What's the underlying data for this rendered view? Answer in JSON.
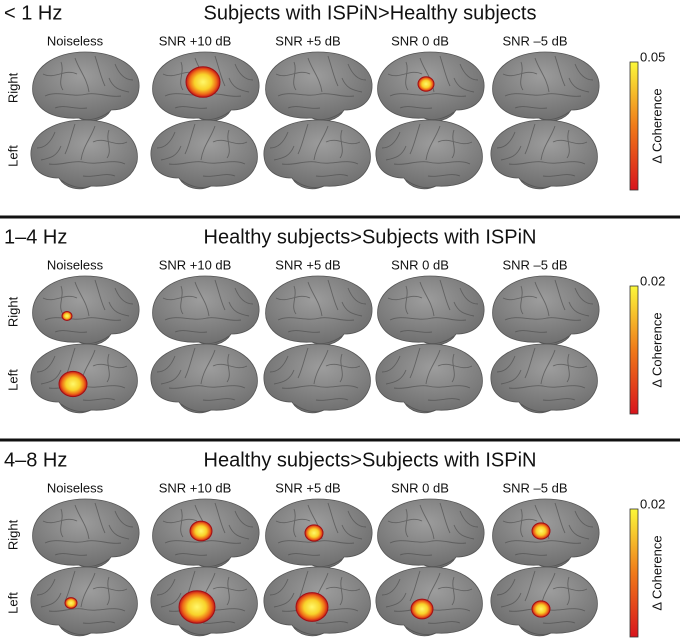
{
  "panels": [
    {
      "band": "< 1 Hz",
      "title": "Subjects with ISPiN>Healthy subjects",
      "columns": [
        "Noiseless",
        "SNR +10 dB",
        "SNR +5 dB",
        "SNR 0 dB",
        "SNR –5 dB"
      ],
      "rows": [
        "Right",
        "Left"
      ],
      "colorbar": {
        "max_label": "0.05",
        "label": "Δ Coherence"
      }
    },
    {
      "band": "1–4 Hz",
      "title": "Healthy subjects>Subjects with ISPiN",
      "columns": [
        "Noiseless",
        "SNR +10 dB",
        "SNR +5 dB",
        "SNR 0 dB",
        "SNR –5 dB"
      ],
      "rows": [
        "Right",
        "Left"
      ],
      "colorbar": {
        "max_label": "0.02",
        "label": "Δ Coherence"
      }
    },
    {
      "band": "4–8 Hz",
      "title": "Healthy subjects>Subjects with ISPiN",
      "columns": [
        "Noiseless",
        "SNR +10 dB",
        "SNR +5 dB",
        "SNR 0 dB",
        "SNR –5 dB"
      ],
      "rows": [
        "Right",
        "Left"
      ],
      "colorbar": {
        "max_label": "0.02",
        "label": "Δ Coherence"
      }
    }
  ]
}
